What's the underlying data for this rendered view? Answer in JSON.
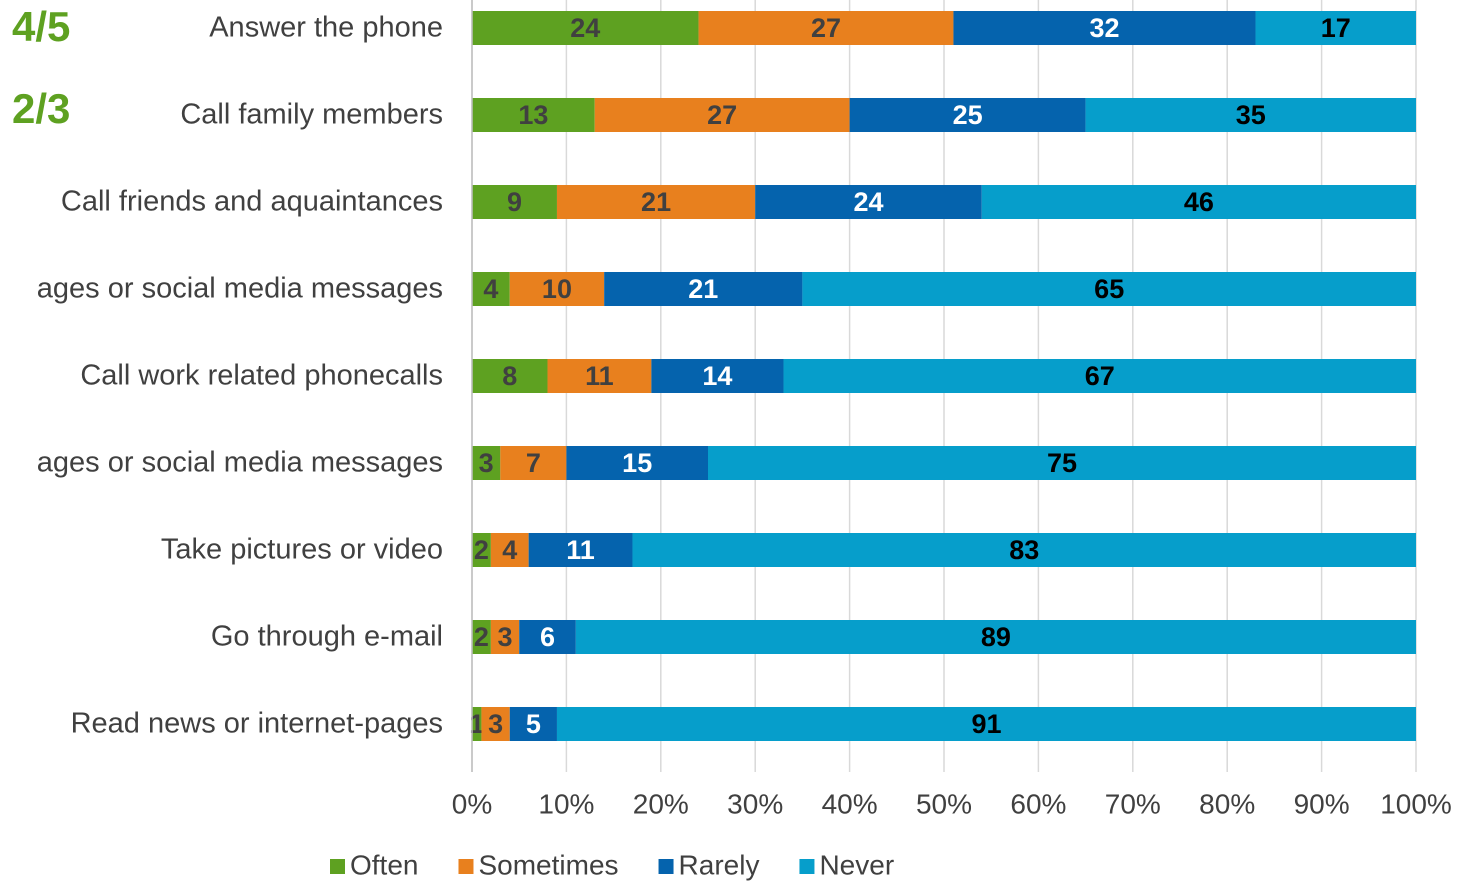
{
  "chart_data": {
    "type": "stacked_barh",
    "annotations": [
      "4/5",
      "2/3"
    ],
    "annotation_color": "#5ea121",
    "categories": [
      "Answer the phone",
      "Call family members",
      "Call friends and aquaintances",
      "ages or social media messages",
      "Call work related phonecalls",
      "ages or social media messages",
      "Take pictures or video",
      "Go through e-mail",
      "Read news or internet-pages"
    ],
    "series": [
      {
        "name": "Often",
        "color": "#5ea121",
        "label_color": "#404040",
        "values": [
          24,
          13,
          9,
          4,
          8,
          3,
          2,
          2,
          1
        ]
      },
      {
        "name": "Sometimes",
        "color": "#e8801e",
        "label_color": "#404040",
        "values": [
          27,
          27,
          21,
          10,
          11,
          7,
          4,
          3,
          3
        ]
      },
      {
        "name": "Rarely",
        "color": "#0563ad",
        "label_color": "#ffffff",
        "values": [
          32,
          25,
          24,
          21,
          14,
          15,
          11,
          6,
          5
        ]
      },
      {
        "name": "Never",
        "color": "#069ecb",
        "label_color": "#000000",
        "values": [
          17,
          35,
          46,
          65,
          67,
          75,
          83,
          89,
          91
        ]
      }
    ],
    "xlim": [
      0,
      100
    ],
    "xticks": [
      {
        "value": 0,
        "label": "0%"
      },
      {
        "value": 10,
        "label": "10%"
      },
      {
        "value": 20,
        "label": "20%"
      },
      {
        "value": 30,
        "label": "30%"
      },
      {
        "value": 40,
        "label": "40%"
      },
      {
        "value": 50,
        "label": "50%"
      },
      {
        "value": 60,
        "label": "60%"
      },
      {
        "value": 70,
        "label": "70%"
      },
      {
        "value": 80,
        "label": "80%"
      },
      {
        "value": 90,
        "label": "90%"
      },
      {
        "value": 100,
        "label": "100%"
      }
    ],
    "grid": true,
    "legend": "bottom"
  }
}
